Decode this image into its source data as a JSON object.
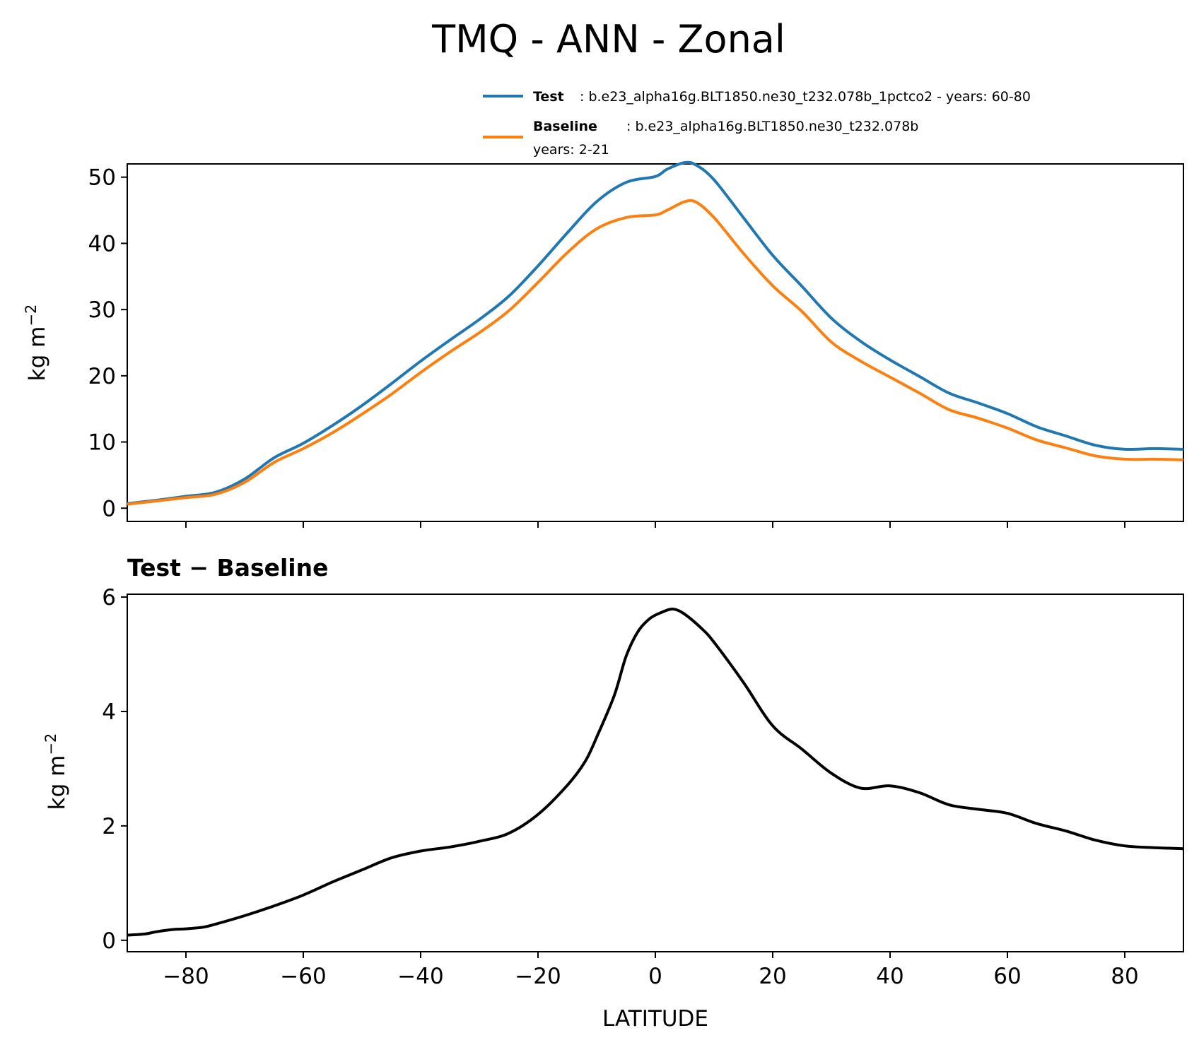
{
  "title": "TMQ - ANN - Zonal",
  "legend": {
    "test_label": "Test",
    "test_text": ": b.e23_alpha16g.BLT1850.ne30_t232.078b_1pctco2 - years: 60-80",
    "baseline_label": "Baseline",
    "baseline_text": ": b.e23_alpha16g.BLT1850.ne30_t232.078b",
    "baseline_years": "years: 2-21"
  },
  "diff_title": "Test − Baseline",
  "chart_data": [
    {
      "type": "line",
      "title": "TMQ - ANN - Zonal",
      "xlabel": "",
      "ylabel": "kg m⁻²",
      "xlim": [
        -90,
        90
      ],
      "ylim": [
        -2,
        52
      ],
      "xticks": [
        -80,
        -60,
        -40,
        -20,
        0,
        20,
        40,
        60,
        80
      ],
      "yticks": [
        0,
        10,
        20,
        30,
        40,
        50
      ],
      "ytick_labels": [
        "0",
        "10",
        "20",
        "30",
        "40",
        "50"
      ],
      "grid": false,
      "legend_position": "top-right, above plot",
      "x": [
        -90,
        -85,
        -80,
        -75,
        -70,
        -65,
        -60,
        -55,
        -50,
        -45,
        -40,
        -35,
        -30,
        -25,
        -20,
        -15,
        -10,
        -5,
        0,
        2,
        5,
        7,
        10,
        15,
        20,
        25,
        30,
        35,
        40,
        45,
        50,
        55,
        60,
        65,
        70,
        75,
        80,
        85,
        90
      ],
      "series": [
        {
          "name": "Test",
          "color": "#1f77b4",
          "values": [
            0.7,
            1.2,
            1.8,
            2.4,
            4.4,
            7.6,
            9.8,
            12.5,
            15.5,
            18.8,
            22.2,
            25.4,
            28.5,
            32.0,
            36.6,
            41.6,
            46.3,
            49.2,
            50.1,
            51.2,
            52.2,
            51.8,
            49.6,
            43.9,
            38.2,
            33.5,
            28.7,
            25.2,
            22.4,
            19.9,
            17.4,
            15.9,
            14.3,
            12.3,
            10.9,
            9.5,
            8.9,
            9.0,
            8.9
          ]
        },
        {
          "name": "Baseline",
          "color": "#ff7f0e",
          "values": [
            0.6,
            1.1,
            1.6,
            2.1,
            3.9,
            6.9,
            9.0,
            11.4,
            14.2,
            17.2,
            20.5,
            23.6,
            26.5,
            29.8,
            34.1,
            38.6,
            42.2,
            43.9,
            44.3,
            45.0,
            46.3,
            46.2,
            43.9,
            38.5,
            33.6,
            29.7,
            25.1,
            22.2,
            19.8,
            17.4,
            14.9,
            13.6,
            12.1,
            10.3,
            9.1,
            7.9,
            7.4,
            7.4,
            7.3
          ]
        }
      ]
    },
    {
      "type": "line",
      "title": "Test − Baseline",
      "xlabel": "LATITUDE",
      "ylabel": "kg m⁻²",
      "xlim": [
        -90,
        90
      ],
      "ylim": [
        -0.2,
        6.05
      ],
      "xticks": [
        -80,
        -60,
        -40,
        -20,
        0,
        20,
        40,
        60,
        80
      ],
      "xtick_labels": [
        "−80",
        "−60",
        "−40",
        "−20",
        "0",
        "20",
        "40",
        "60",
        "80"
      ],
      "yticks": [
        0,
        2,
        4,
        6
      ],
      "ytick_labels": [
        "0",
        "2",
        "4",
        "6"
      ],
      "grid": false,
      "x": [
        -90,
        -87,
        -85,
        -82,
        -80,
        -77,
        -75,
        -70,
        -65,
        -60,
        -55,
        -50,
        -45,
        -40,
        -35,
        -30,
        -25,
        -20,
        -15,
        -12,
        -10,
        -7,
        -5,
        -3,
        -1,
        1,
        3,
        5,
        8,
        10,
        15,
        20,
        25,
        30,
        35,
        40,
        45,
        50,
        55,
        60,
        65,
        70,
        75,
        80,
        85,
        90
      ],
      "series": [
        {
          "name": "Test − Baseline",
          "color": "#000000",
          "values": [
            0.09,
            0.11,
            0.15,
            0.19,
            0.2,
            0.23,
            0.28,
            0.43,
            0.6,
            0.79,
            1.02,
            1.23,
            1.44,
            1.56,
            1.63,
            1.73,
            1.87,
            2.2,
            2.71,
            3.12,
            3.55,
            4.28,
            4.96,
            5.39,
            5.62,
            5.73,
            5.79,
            5.7,
            5.44,
            5.21,
            4.51,
            3.75,
            3.34,
            2.92,
            2.66,
            2.7,
            2.58,
            2.37,
            2.29,
            2.22,
            2.04,
            1.91,
            1.75,
            1.65,
            1.62,
            1.6
          ]
        }
      ]
    }
  ]
}
